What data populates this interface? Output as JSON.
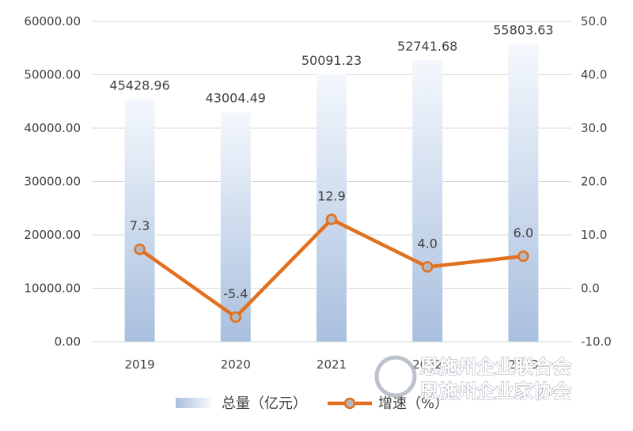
{
  "chart_data": {
    "type": "bar",
    "categories": [
      "2019",
      "2020",
      "2021",
      "2022",
      "2023"
    ],
    "series": [
      {
        "name": "总量（亿元）",
        "type": "bar",
        "axis": "left",
        "values": [
          45428.96,
          43004.49,
          50091.23,
          52741.68,
          55803.63
        ],
        "labels": [
          "45428.96",
          "43004.49",
          "50091.23",
          "52741.68",
          "55803.63"
        ]
      },
      {
        "name": "增速（%）",
        "type": "line",
        "axis": "right",
        "values": [
          7.3,
          -5.4,
          12.9,
          4.0,
          6.0
        ],
        "labels": [
          "7.3",
          "-5.4",
          "12.9",
          "4.0",
          "6.0"
        ]
      }
    ],
    "left_axis": {
      "ylim": [
        0,
        60000
      ],
      "ticks": [
        0,
        10000,
        20000,
        30000,
        40000,
        50000,
        60000
      ],
      "tick_labels": [
        "0.00",
        "10000.00",
        "20000.00",
        "30000.00",
        "40000.00",
        "50000.00",
        "60000.00"
      ]
    },
    "right_axis": {
      "ylim": [
        -10,
        50
      ],
      "ticks": [
        -10,
        0,
        10,
        20,
        30,
        40,
        50
      ],
      "tick_labels": [
        "-10.0",
        "0.0",
        "10.0",
        "20.0",
        "30.0",
        "40.0",
        "50.0"
      ]
    },
    "grid": true,
    "legend": "bottom",
    "colors": {
      "bar_top": "#f4f8fd",
      "bar_bottom": "#a9bfde",
      "line": "#e2701e",
      "marker_fill": "#b4b8bf",
      "grid": "#d9d9d9"
    }
  },
  "watermark": {
    "lines": [
      "恩施州企业联合会",
      "恩施州企业家协会"
    ],
    "logo": "watermark-logo-icon"
  }
}
